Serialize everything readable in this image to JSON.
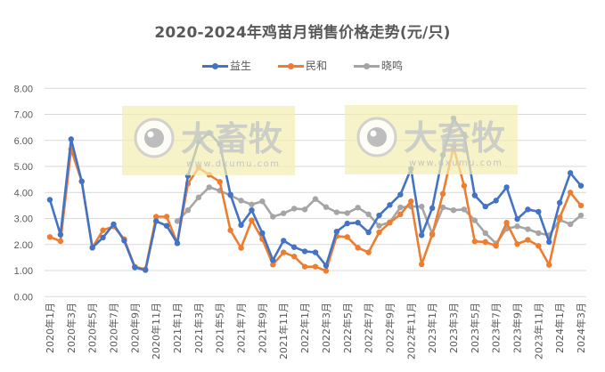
{
  "chart_data": {
    "type": "line",
    "title": "2020-2024年鸡苗月销售价格走势(元/只)",
    "xlabel": "",
    "ylabel": "",
    "ylim": [
      0,
      8
    ],
    "yticks": [
      "0.00",
      "1.00",
      "2.00",
      "3.00",
      "4.00",
      "5.00",
      "6.00",
      "7.00",
      "8.00"
    ],
    "grid": true,
    "legend_position": "top",
    "categories": [
      "2020年1月",
      "2020年2月",
      "2020年3月",
      "2020年4月",
      "2020年5月",
      "2020年6月",
      "2020年7月",
      "2020年8月",
      "2020年9月",
      "2020年10月",
      "2020年11月",
      "2020年12月",
      "2021年1月",
      "2021年2月",
      "2021年3月",
      "2021年4月",
      "2021年5月",
      "2021年6月",
      "2021年7月",
      "2021年8月",
      "2021年9月",
      "2021年10月",
      "2021年11月",
      "2021年12月",
      "2022年1月",
      "2022年2月",
      "2022年3月",
      "2022年4月",
      "2022年5月",
      "2022年6月",
      "2022年7月",
      "2022年8月",
      "2022年9月",
      "2022年10月",
      "2022年11月",
      "2022年12月",
      "2023年1月",
      "2023年2月",
      "2023年3月",
      "2023年4月",
      "2023年5月",
      "2023年6月",
      "2023年7月",
      "2023年8月",
      "2023年9月",
      "2023年10月",
      "2023年11月",
      "2023年12月",
      "2024年1月",
      "2024年2月",
      "2024年3月"
    ],
    "tick_labels": [
      "2020年1月",
      "2020年3月",
      "2020年5月",
      "2020年7月",
      "2020年9月",
      "2020年11月",
      "2021年1月",
      "2021年3月",
      "2021年5月",
      "2021年7月",
      "2021年9月",
      "2021年11月",
      "2022年1月",
      "2022年3月",
      "2022年5月",
      "2022年7月",
      "2022年9月",
      "2022年11月",
      "2023年1月",
      "2023年3月",
      "2023年5月",
      "2023年7月",
      "2023年9月",
      "2023年11月",
      "2024年1月",
      "2024年3月"
    ],
    "series": [
      {
        "name": "益生",
        "color": "#4472c4",
        "values": [
          3.72,
          2.38,
          6.05,
          4.43,
          1.88,
          2.27,
          2.78,
          2.15,
          1.12,
          1.02,
          2.9,
          2.72,
          2.05,
          4.64,
          5.95,
          6.29,
          5.86,
          3.92,
          2.75,
          3.32,
          2.44,
          1.4,
          2.15,
          1.9,
          1.74,
          1.7,
          1.19,
          2.5,
          2.81,
          2.84,
          2.47,
          3.12,
          3.52,
          3.92,
          4.91,
          2.36,
          3.4,
          5.44,
          6.85,
          6.23,
          3.89,
          3.46,
          3.69,
          4.2,
          2.98,
          3.35,
          3.26,
          2.1,
          3.61,
          4.75,
          4.26
        ]
      },
      {
        "name": "民和",
        "color": "#ed7d31",
        "values": [
          2.29,
          2.13,
          5.66,
          4.43,
          1.88,
          2.55,
          2.7,
          2.21,
          1.15,
          1.05,
          3.07,
          3.07,
          2.05,
          4.34,
          4.95,
          4.68,
          4.41,
          2.55,
          1.87,
          2.93,
          2.21,
          1.23,
          1.7,
          1.54,
          1.15,
          1.15,
          0.99,
          2.32,
          2.29,
          1.88,
          1.7,
          2.47,
          2.84,
          3.16,
          3.66,
          1.24,
          2.38,
          3.95,
          5.74,
          4.26,
          2.12,
          2.1,
          1.95,
          2.84,
          2.02,
          2.18,
          1.95,
          1.22,
          3.04,
          4.0,
          3.5
        ]
      },
      {
        "name": "晓鸣",
        "color": "#a5a5a5",
        "values": [
          null,
          null,
          null,
          null,
          null,
          null,
          null,
          null,
          null,
          null,
          null,
          null,
          2.9,
          3.32,
          3.81,
          4.2,
          4.07,
          3.89,
          3.69,
          3.54,
          3.66,
          3.07,
          3.2,
          3.38,
          3.35,
          3.75,
          3.44,
          3.24,
          3.21,
          3.42,
          3.16,
          2.72,
          2.86,
          3.43,
          3.46,
          3.46,
          2.42,
          3.43,
          3.32,
          3.35,
          2.93,
          2.44,
          2.04,
          2.61,
          2.7,
          2.59,
          2.44,
          2.36,
          2.95,
          2.78,
          3.12
        ]
      }
    ]
  },
  "legend": {
    "items": [
      {
        "label": "益生",
        "color": "#4472c4"
      },
      {
        "label": "民和",
        "color": "#ed7d31"
      },
      {
        "label": "晓鸣",
        "color": "#a5a5a5"
      }
    ]
  },
  "watermark": {
    "text": "大畜牧",
    "url_text": "www.dxumu.com"
  }
}
